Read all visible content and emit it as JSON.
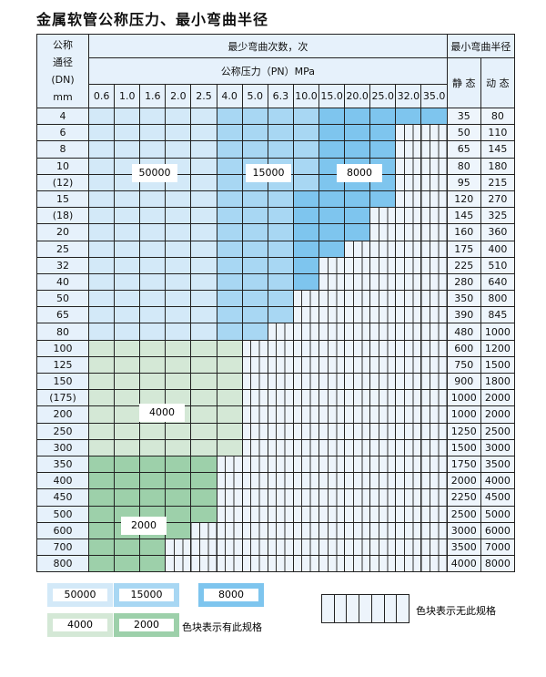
{
  "title": "金属软管公称压力、最小弯曲半径",
  "header": {
    "dn_label_lines": [
      "公称",
      "通径",
      "(DN)",
      "mm"
    ],
    "cycles_title": "最少弯曲次数，次",
    "pressure_title": "公称压力（PN）MPa",
    "radius_title": "最小弯曲半径",
    "static_label": "静 态",
    "dynamic_label": "动 态",
    "pressures": [
      "0.6",
      "1.0",
      "1.6",
      "2.0",
      "2.5",
      "4.0",
      "5.0",
      "6.3",
      "10.0",
      "15.0",
      "20.0",
      "25.0",
      "32.0",
      "35.0"
    ]
  },
  "colors": {
    "50000": "#d3e9f8",
    "15000": "#a8d7f3",
    "8000": "#7ec5ee",
    "4000": "#d4e8d6",
    "2000": "#9dd0aa"
  },
  "region_labels": {
    "a": "50000",
    "b": "15000",
    "c": "8000",
    "d": "4000",
    "e": "2000"
  },
  "rows": [
    {
      "dn": "4",
      "static": "35",
      "dynamic": "80",
      "cycles": [
        50000,
        50000,
        50000,
        50000,
        50000,
        15000,
        15000,
        15000,
        15000,
        8000,
        8000,
        8000,
        8000,
        8000
      ]
    },
    {
      "dn": "6",
      "static": "50",
      "dynamic": "110",
      "cycles": [
        50000,
        50000,
        50000,
        50000,
        50000,
        15000,
        15000,
        15000,
        15000,
        8000,
        8000,
        8000
      ]
    },
    {
      "dn": "8",
      "static": "65",
      "dynamic": "145",
      "cycles": [
        50000,
        50000,
        50000,
        50000,
        50000,
        15000,
        15000,
        15000,
        15000,
        8000,
        8000,
        8000
      ]
    },
    {
      "dn": "10",
      "static": "80",
      "dynamic": "180",
      "cycles": [
        50000,
        50000,
        50000,
        50000,
        50000,
        15000,
        15000,
        15000,
        15000,
        8000,
        8000,
        8000
      ]
    },
    {
      "dn": "(12)",
      "static": "95",
      "dynamic": "215",
      "cycles": [
        50000,
        50000,
        50000,
        50000,
        50000,
        15000,
        15000,
        15000,
        15000,
        8000,
        8000,
        8000
      ]
    },
    {
      "dn": "15",
      "static": "120",
      "dynamic": "270",
      "cycles": [
        50000,
        50000,
        50000,
        50000,
        50000,
        15000,
        15000,
        15000,
        8000,
        8000,
        8000,
        8000
      ]
    },
    {
      "dn": "(18)",
      "static": "145",
      "dynamic": "325",
      "cycles": [
        50000,
        50000,
        50000,
        50000,
        50000,
        15000,
        15000,
        15000,
        8000,
        8000,
        8000
      ]
    },
    {
      "dn": "20",
      "static": "160",
      "dynamic": "360",
      "cycles": [
        50000,
        50000,
        50000,
        50000,
        50000,
        15000,
        15000,
        15000,
        8000,
        8000,
        8000
      ]
    },
    {
      "dn": "25",
      "static": "175",
      "dynamic": "400",
      "cycles": [
        50000,
        50000,
        50000,
        50000,
        50000,
        15000,
        15000,
        15000,
        8000,
        8000
      ]
    },
    {
      "dn": "32",
      "static": "225",
      "dynamic": "510",
      "cycles": [
        50000,
        50000,
        50000,
        50000,
        50000,
        15000,
        15000,
        15000,
        8000
      ]
    },
    {
      "dn": "40",
      "static": "280",
      "dynamic": "640",
      "cycles": [
        50000,
        50000,
        50000,
        50000,
        50000,
        15000,
        15000,
        15000,
        8000
      ]
    },
    {
      "dn": "50",
      "static": "350",
      "dynamic": "800",
      "cycles": [
        50000,
        50000,
        50000,
        50000,
        50000,
        15000,
        15000,
        15000
      ]
    },
    {
      "dn": "65",
      "static": "390",
      "dynamic": "845",
      "cycles": [
        50000,
        50000,
        50000,
        50000,
        50000,
        15000,
        15000,
        15000
      ]
    },
    {
      "dn": "80",
      "static": "480",
      "dynamic": "1000",
      "cycles": [
        50000,
        50000,
        50000,
        50000,
        50000,
        15000,
        15000
      ]
    },
    {
      "dn": "100",
      "static": "600",
      "dynamic": "1200",
      "cycles": [
        4000,
        4000,
        4000,
        4000,
        4000,
        4000
      ]
    },
    {
      "dn": "125",
      "static": "750",
      "dynamic": "1500",
      "cycles": [
        4000,
        4000,
        4000,
        4000,
        4000,
        4000
      ]
    },
    {
      "dn": "150",
      "static": "900",
      "dynamic": "1800",
      "cycles": [
        4000,
        4000,
        4000,
        4000,
        4000,
        4000
      ]
    },
    {
      "dn": "(175)",
      "static": "1000",
      "dynamic": "2000",
      "cycles": [
        4000,
        4000,
        4000,
        4000,
        4000,
        4000
      ]
    },
    {
      "dn": "200",
      "static": "1000",
      "dynamic": "2000",
      "cycles": [
        4000,
        4000,
        4000,
        4000,
        4000,
        4000
      ]
    },
    {
      "dn": "250",
      "static": "1250",
      "dynamic": "2500",
      "cycles": [
        4000,
        4000,
        4000,
        4000,
        4000,
        4000
      ]
    },
    {
      "dn": "300",
      "static": "1500",
      "dynamic": "3000",
      "cycles": [
        4000,
        4000,
        4000,
        4000,
        4000,
        4000
      ]
    },
    {
      "dn": "350",
      "static": "1750",
      "dynamic": "3500",
      "cycles": [
        2000,
        2000,
        2000,
        2000,
        2000
      ]
    },
    {
      "dn": "400",
      "static": "2000",
      "dynamic": "4000",
      "cycles": [
        2000,
        2000,
        2000,
        2000,
        2000
      ]
    },
    {
      "dn": "450",
      "static": "2250",
      "dynamic": "4500",
      "cycles": [
        2000,
        2000,
        2000,
        2000,
        2000
      ]
    },
    {
      "dn": "500",
      "static": "2500",
      "dynamic": "5000",
      "cycles": [
        2000,
        2000,
        2000,
        2000,
        2000
      ]
    },
    {
      "dn": "600",
      "static": "3000",
      "dynamic": "6000",
      "cycles": [
        2000,
        2000,
        2000,
        2000
      ]
    },
    {
      "dn": "700",
      "static": "3500",
      "dynamic": "7000",
      "cycles": [
        2000,
        2000,
        2000
      ]
    },
    {
      "dn": "800",
      "static": "4000",
      "dynamic": "8000",
      "cycles": [
        2000,
        2000,
        2000
      ]
    }
  ],
  "legend": {
    "items": [
      "50000",
      "15000",
      "8000",
      "4000",
      "2000"
    ],
    "has_spec_text": "色块表示有此规格",
    "no_spec_text": "色块表示无此规格"
  }
}
